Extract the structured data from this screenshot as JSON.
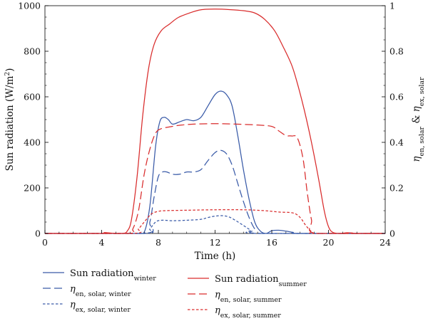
{
  "chart_data": {
    "type": "line",
    "xlabel": "Time (h)",
    "ylabel_left": "Sun radiation (W/m",
    "ylabel_left_sup": "2",
    "ylabel_left_close": ")",
    "ylabel_right": [
      {
        "text": "η",
        "italic": true
      },
      {
        "text": "en, solar",
        "sub": true
      },
      {
        "text": " & "
      },
      {
        "text": "η",
        "italic": true
      },
      {
        "text": "ex, solar",
        "sub": true
      }
    ],
    "xlim": [
      0,
      24
    ],
    "ylim_left": [
      0,
      1000
    ],
    "ylim_right": [
      0,
      1
    ],
    "xticks": [
      "0",
      "4",
      "8",
      "12",
      "16",
      "20",
      "24"
    ],
    "yticks_left": [
      "0",
      "200",
      "400",
      "600",
      "800",
      "1000"
    ],
    "yticks_right": [
      "0",
      "0.2",
      "0.4",
      "0.6",
      "0.8",
      "1"
    ],
    "grid": false,
    "legend_position": "bottom",
    "series": [
      {
        "key": "rad_winter",
        "name": "Sun radiation",
        "name_sub": "winter",
        "legend_col": 0,
        "legend_row": 0,
        "axis": "left",
        "color": "#3a5ba8",
        "dash": "solid",
        "points": [
          [
            0,
            0
          ],
          [
            6.5,
            0
          ],
          [
            7.0,
            5
          ],
          [
            7.4,
            120
          ],
          [
            7.8,
            380
          ],
          [
            8.1,
            490
          ],
          [
            8.4,
            510
          ],
          [
            8.7,
            500
          ],
          [
            9.0,
            480
          ],
          [
            9.5,
            490
          ],
          [
            10.0,
            500
          ],
          [
            10.5,
            495
          ],
          [
            11.0,
            510
          ],
          [
            11.5,
            560
          ],
          [
            12.0,
            610
          ],
          [
            12.4,
            625
          ],
          [
            12.8,
            610
          ],
          [
            13.2,
            560
          ],
          [
            13.6,
            430
          ],
          [
            14.0,
            280
          ],
          [
            14.4,
            150
          ],
          [
            14.8,
            50
          ],
          [
            15.2,
            10
          ],
          [
            15.6,
            0
          ],
          [
            16.0,
            12
          ],
          [
            16.5,
            14
          ],
          [
            17.0,
            10
          ],
          [
            17.5,
            5
          ],
          [
            18.0,
            0
          ],
          [
            24,
            0
          ]
        ]
      },
      {
        "key": "en_winter",
        "name": "η",
        "name_sub": "en, solar, winter",
        "legend_col": 0,
        "legend_row": 1,
        "axis": "right",
        "color": "#3a5ba8",
        "dash": "long",
        "points": [
          [
            0,
            0
          ],
          [
            7.0,
            0
          ],
          [
            7.4,
            0.05
          ],
          [
            7.7,
            0.16
          ],
          [
            8.0,
            0.25
          ],
          [
            8.3,
            0.27
          ],
          [
            8.6,
            0.27
          ],
          [
            9.0,
            0.26
          ],
          [
            9.5,
            0.26
          ],
          [
            10.0,
            0.27
          ],
          [
            10.5,
            0.27
          ],
          [
            11.0,
            0.28
          ],
          [
            11.5,
            0.32
          ],
          [
            12.0,
            0.355
          ],
          [
            12.4,
            0.365
          ],
          [
            12.8,
            0.35
          ],
          [
            13.2,
            0.3
          ],
          [
            13.6,
            0.22
          ],
          [
            14.0,
            0.14
          ],
          [
            14.4,
            0.07
          ],
          [
            14.8,
            0.02
          ],
          [
            15.2,
            0.0
          ],
          [
            24,
            0
          ]
        ]
      },
      {
        "key": "ex_winter",
        "name": "η",
        "name_sub": "ex, solar, winter",
        "legend_col": 0,
        "legend_row": 2,
        "axis": "right",
        "color": "#3a5ba8",
        "dash": "short",
        "points": [
          [
            0,
            0
          ],
          [
            7.0,
            0
          ],
          [
            7.4,
            0.02
          ],
          [
            7.8,
            0.05
          ],
          [
            8.2,
            0.058
          ],
          [
            9.0,
            0.056
          ],
          [
            10.0,
            0.058
          ],
          [
            11.0,
            0.062
          ],
          [
            11.5,
            0.07
          ],
          [
            12.0,
            0.076
          ],
          [
            12.5,
            0.078
          ],
          [
            13.0,
            0.072
          ],
          [
            13.5,
            0.055
          ],
          [
            14.0,
            0.035
          ],
          [
            14.5,
            0.015
          ],
          [
            15.0,
            0.0
          ],
          [
            24,
            0
          ]
        ]
      },
      {
        "key": "rad_summer",
        "name": "Sun radiation",
        "name_sub": "summer",
        "legend_col": 1,
        "legend_row": 0,
        "axis": "left",
        "color": "#d92c2c",
        "dash": "solid",
        "points": [
          [
            0,
            0
          ],
          [
            3.8,
            0
          ],
          [
            4.2,
            4
          ],
          [
            4.6,
            2
          ],
          [
            5.0,
            0
          ],
          [
            5.5,
            0
          ],
          [
            5.8,
            10
          ],
          [
            6.1,
            60
          ],
          [
            6.5,
            250
          ],
          [
            6.9,
            520
          ],
          [
            7.3,
            720
          ],
          [
            7.7,
            830
          ],
          [
            8.2,
            890
          ],
          [
            8.8,
            920
          ],
          [
            9.4,
            948
          ],
          [
            10.2,
            968
          ],
          [
            11.0,
            982
          ],
          [
            12.0,
            985
          ],
          [
            13.0,
            983
          ],
          [
            14.0,
            978
          ],
          [
            14.8,
            968
          ],
          [
            15.5,
            940
          ],
          [
            16.2,
            890
          ],
          [
            16.8,
            820
          ],
          [
            17.4,
            740
          ],
          [
            17.8,
            660
          ],
          [
            18.3,
            540
          ],
          [
            18.8,
            400
          ],
          [
            19.3,
            240
          ],
          [
            19.7,
            100
          ],
          [
            20.0,
            30
          ],
          [
            20.3,
            5
          ],
          [
            20.8,
            0
          ],
          [
            21.3,
            3
          ],
          [
            21.7,
            2
          ],
          [
            22.0,
            0
          ],
          [
            24,
            0
          ]
        ]
      },
      {
        "key": "en_summer",
        "name": "η",
        "name_sub": "en, solar, summer",
        "legend_col": 1,
        "legend_row": 1,
        "axis": "right",
        "color": "#d92c2c",
        "dash": "long",
        "points": [
          [
            0,
            0
          ],
          [
            5.8,
            0
          ],
          [
            6.2,
            0.02
          ],
          [
            6.6,
            0.1
          ],
          [
            7.0,
            0.26
          ],
          [
            7.4,
            0.37
          ],
          [
            7.8,
            0.44
          ],
          [
            8.2,
            0.46
          ],
          [
            8.8,
            0.468
          ],
          [
            9.5,
            0.475
          ],
          [
            10.5,
            0.48
          ],
          [
            12.0,
            0.482
          ],
          [
            13.5,
            0.48
          ],
          [
            15.0,
            0.476
          ],
          [
            16.0,
            0.47
          ],
          [
            16.5,
            0.45
          ],
          [
            17.0,
            0.43
          ],
          [
            17.4,
            0.428
          ],
          [
            17.8,
            0.42
          ],
          [
            18.2,
            0.33
          ],
          [
            18.5,
            0.18
          ],
          [
            18.8,
            0.06
          ],
          [
            19.1,
            0.0
          ],
          [
            24,
            0
          ]
        ]
      },
      {
        "key": "ex_summer",
        "name": "η",
        "name_sub": "ex, solar, summer",
        "legend_col": 1,
        "legend_row": 2,
        "axis": "right",
        "color": "#d92c2c",
        "dash": "short",
        "points": [
          [
            0,
            0
          ],
          [
            6.2,
            0
          ],
          [
            6.6,
            0.02
          ],
          [
            7.0,
            0.05
          ],
          [
            7.5,
            0.085
          ],
          [
            8.0,
            0.097
          ],
          [
            8.5,
            0.1
          ],
          [
            10.0,
            0.102
          ],
          [
            12.0,
            0.104
          ],
          [
            14.0,
            0.104
          ],
          [
            15.5,
            0.1
          ],
          [
            16.5,
            0.094
          ],
          [
            17.5,
            0.09
          ],
          [
            18.0,
            0.07
          ],
          [
            18.4,
            0.035
          ],
          [
            18.8,
            0.008
          ],
          [
            19.1,
            0.0
          ],
          [
            24,
            0
          ]
        ]
      }
    ]
  }
}
